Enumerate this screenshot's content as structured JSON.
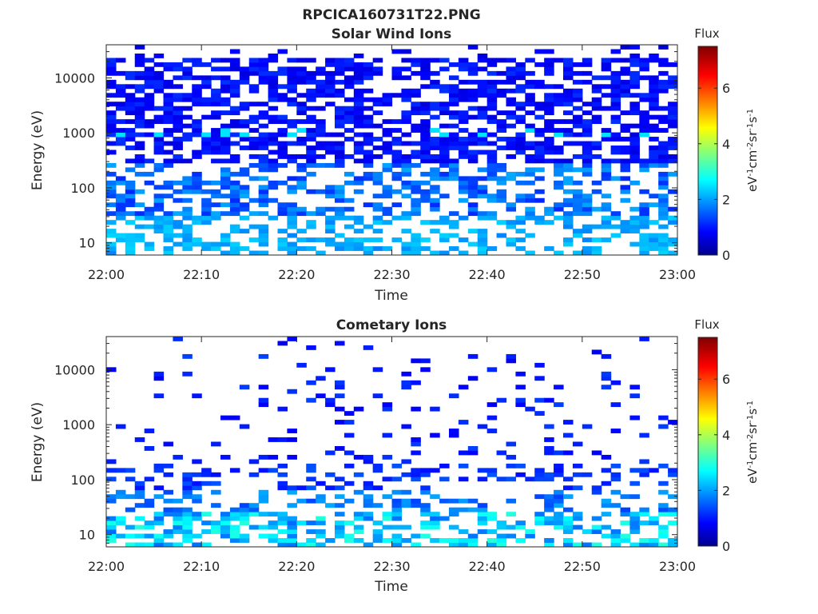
{
  "figure_title": "RPCICA160731T22.PNG",
  "chart_data": [
    {
      "type": "heatmap",
      "title": "Solar Wind Ions",
      "xlabel": "Time",
      "ylabel": "Energy (eV)",
      "y_scale": "log",
      "xlim": [
        "22:00",
        "23:00"
      ],
      "ylim": [
        6,
        40000
      ],
      "xticks": [
        "22:00",
        "22:10",
        "22:20",
        "22:30",
        "22:40",
        "22:50",
        "23:00"
      ],
      "yticks": [
        {
          "value": 10,
          "label": "10"
        },
        {
          "value": 100,
          "label": "100"
        },
        {
          "value": 1000,
          "label": "1000"
        },
        {
          "value": 10000,
          "label": "10000"
        }
      ],
      "colorbar": {
        "title": "Flux",
        "label": "eV-1cm-2sr-1s-1",
        "range": [
          0,
          7.5
        ],
        "ticks": [
          "0",
          "2",
          "4",
          "6"
        ],
        "colormap": "jet"
      },
      "pattern": {
        "time_bins": 60,
        "energy_bins": 48,
        "density_high_energy": 0.6,
        "dominant_flux": 1.0,
        "band_1000eV_flux": 2.6,
        "low_energy_flux": 2.2
      }
    },
    {
      "type": "heatmap",
      "title": "Cometary Ions",
      "xlabel": "Time",
      "ylabel": "Energy (eV)",
      "y_scale": "log",
      "xlim": [
        "22:00",
        "23:00"
      ],
      "ylim": [
        6,
        40000
      ],
      "xticks": [
        "22:00",
        "22:10",
        "22:20",
        "22:30",
        "22:40",
        "22:50",
        "23:00"
      ],
      "yticks": [
        {
          "value": 10,
          "label": "10"
        },
        {
          "value": 100,
          "label": "100"
        },
        {
          "value": 1000,
          "label": "1000"
        },
        {
          "value": 10000,
          "label": "10000"
        }
      ],
      "colorbar": {
        "title": "Flux",
        "label": "eV-1cm-2sr-1s-1",
        "range": [
          0,
          7.5
        ],
        "ticks": [
          "0",
          "2",
          "4",
          "6"
        ],
        "colormap": "jet"
      },
      "pattern": {
        "time_bins": 60,
        "energy_bins": 48,
        "density_high_energy": 0.12,
        "dominant_flux": 1.0,
        "band_100eV_flux": 1.3,
        "low_energy_flux": 2.4
      }
    }
  ]
}
